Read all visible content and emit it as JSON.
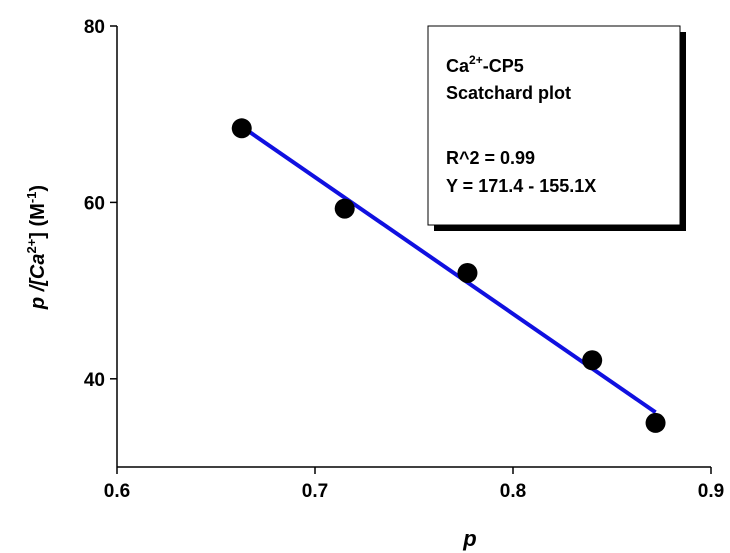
{
  "chart_data": {
    "type": "scatter",
    "x": [
      0.663,
      0.715,
      0.777,
      0.84,
      0.872
    ],
    "values": [
      68.4,
      59.3,
      52.0,
      42.1,
      35.0
    ],
    "color": "#000000",
    "fit_line": {
      "x": [
        0.663,
        0.872
      ],
      "y": [
        68.6,
        36.2
      ],
      "color": "#1010e0"
    },
    "xlim": [
      0.6,
      0.9
    ],
    "ylim": [
      30,
      80
    ],
    "xticks": [
      0.6,
      0.7,
      0.8,
      0.9
    ],
    "yticks": [
      40,
      60,
      80
    ],
    "x_label": "p",
    "y_label": [
      "p /[Ca",
      "2+",
      "] (M",
      "-1",
      ")"
    ],
    "annotation": {
      "line1": [
        "Ca",
        "2+",
        "-CP5"
      ],
      "line2": "Scatchard plot",
      "line3": "R^2 = 0.99",
      "line4": "Y = 171.4 - 155.1X"
    }
  }
}
